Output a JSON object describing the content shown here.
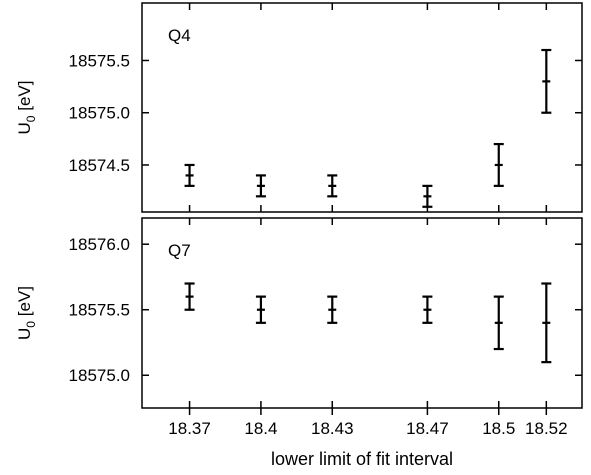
{
  "chart_data": [
    {
      "type": "scatter",
      "panel_label": "Q4",
      "ylabel": "U",
      "ylabel_sub": "0",
      "ylabel_unit": " [eV]",
      "ylim": [
        18574.05,
        18576.05
      ],
      "yticks": [
        18574.5,
        18575.0,
        18575.5
      ],
      "ytick_labels": [
        "18574.5",
        "18575.0",
        "18575.5"
      ],
      "points": [
        {
          "x": 18.37,
          "y": 18574.4,
          "yerr": 0.1
        },
        {
          "x": 18.4,
          "y": 18574.3,
          "yerr": 0.1
        },
        {
          "x": 18.43,
          "y": 18574.3,
          "yerr": 0.1
        },
        {
          "x": 18.47,
          "y": 18574.2,
          "yerr": 0.1
        },
        {
          "x": 18.5,
          "y": 18574.5,
          "yerr": 0.2
        },
        {
          "x": 18.52,
          "y": 18575.3,
          "yerr": 0.3
        }
      ]
    },
    {
      "type": "scatter",
      "panel_label": "Q7",
      "ylabel": "U",
      "ylabel_sub": "0",
      "ylabel_unit": " [eV]",
      "ylim": [
        18574.75,
        18576.2
      ],
      "yticks": [
        18575.0,
        18575.5,
        18576.0
      ],
      "ytick_labels": [
        "18575.0",
        "18575.5",
        "18576.0"
      ],
      "points": [
        {
          "x": 18.37,
          "y": 18575.6,
          "yerr": 0.1
        },
        {
          "x": 18.4,
          "y": 18575.5,
          "yerr": 0.1
        },
        {
          "x": 18.43,
          "y": 18575.5,
          "yerr": 0.1
        },
        {
          "x": 18.47,
          "y": 18575.5,
          "yerr": 0.1
        },
        {
          "x": 18.5,
          "y": 18575.4,
          "yerr": 0.2
        },
        {
          "x": 18.52,
          "y": 18575.4,
          "yerr": 0.3
        }
      ]
    }
  ],
  "x_axis": {
    "label": "lower limit of fit interval",
    "xlim": [
      18.35,
      18.535
    ],
    "ticks": [
      18.37,
      18.4,
      18.43,
      18.47,
      18.5,
      18.52
    ],
    "tick_labels": [
      "18.37",
      "18.4",
      "18.43",
      "18.47",
      "18.5",
      "18.52"
    ]
  },
  "grid": false
}
